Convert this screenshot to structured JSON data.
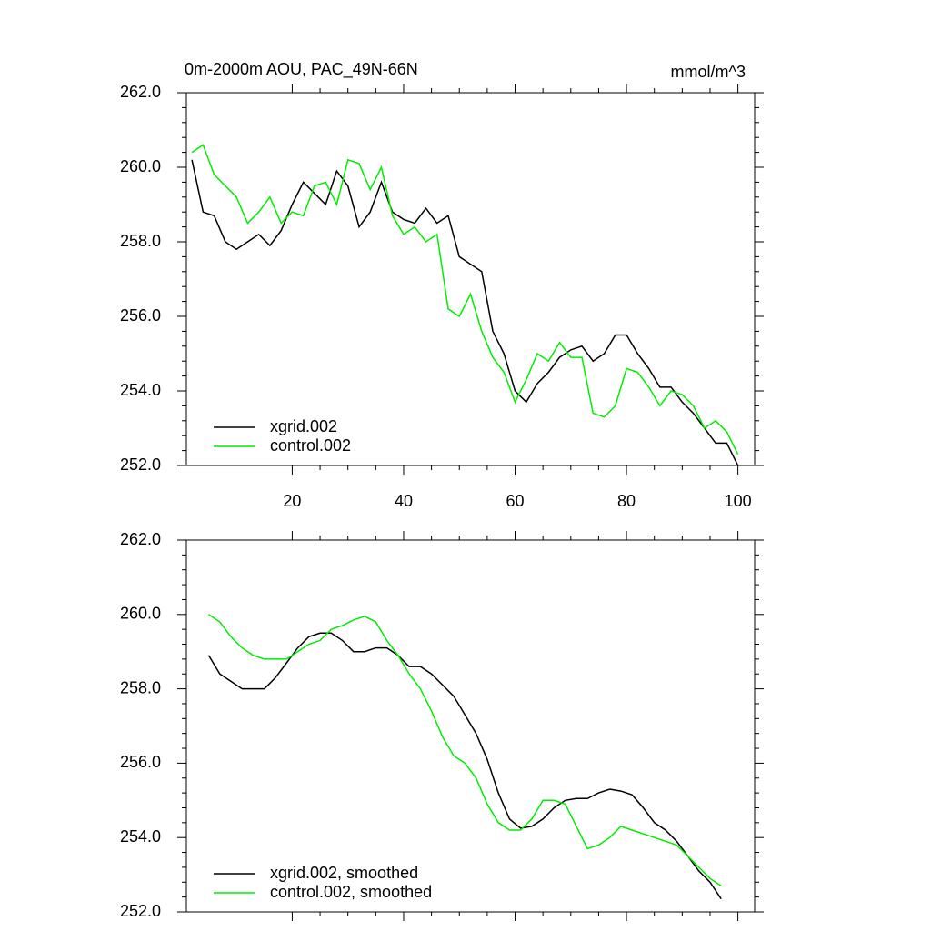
{
  "chart_data": [
    {
      "type": "line",
      "title": "0m-2000m AOU, PAC_49N-66N",
      "units": "mmol/m^3",
      "x": [
        2,
        4,
        6,
        8,
        10,
        12,
        14,
        16,
        18,
        20,
        22,
        24,
        26,
        28,
        30,
        32,
        34,
        36,
        38,
        40,
        42,
        44,
        46,
        48,
        50,
        52,
        54,
        56,
        58,
        60,
        62,
        64,
        66,
        68,
        70,
        72,
        74,
        76,
        78,
        80,
        82,
        84,
        86,
        88,
        90,
        92,
        94,
        96,
        98,
        100
      ],
      "series": [
        {
          "name": "xgrid.002",
          "color": "#000000",
          "values": [
            260.2,
            258.8,
            258.7,
            258.0,
            257.8,
            258.0,
            258.2,
            257.9,
            258.3,
            259.0,
            259.6,
            259.3,
            259.0,
            259.9,
            259.5,
            258.4,
            258.8,
            259.6,
            258.8,
            258.6,
            258.5,
            258.9,
            258.5,
            258.7,
            257.6,
            257.4,
            257.2,
            255.6,
            255.0,
            254.0,
            253.7,
            254.2,
            254.5,
            254.9,
            255.1,
            255.2,
            254.8,
            255.0,
            255.5,
            255.5,
            255.0,
            254.6,
            254.1,
            254.1,
            253.7,
            253.4,
            253.0,
            252.6,
            252.6,
            252.0
          ]
        },
        {
          "name": "control.002",
          "color": "#00ee00",
          "values": [
            260.4,
            260.6,
            259.8,
            259.5,
            259.2,
            258.5,
            258.8,
            259.2,
            258.5,
            258.8,
            258.7,
            259.5,
            259.6,
            259.0,
            260.2,
            260.1,
            259.4,
            260.0,
            258.7,
            258.2,
            258.4,
            258.0,
            258.2,
            256.2,
            256.0,
            256.6,
            255.6,
            254.9,
            254.5,
            253.7,
            254.3,
            255.0,
            254.8,
            255.3,
            254.9,
            254.9,
            253.4,
            253.3,
            253.6,
            254.6,
            254.5,
            254.1,
            253.6,
            254.0,
            253.9,
            253.6,
            253.0,
            253.2,
            252.9,
            252.3
          ]
        }
      ],
      "xlim": [
        1,
        103
      ],
      "xticks": [
        20,
        40,
        60,
        80,
        100
      ],
      "ylim": [
        252,
        262
      ],
      "yticks": [
        {
          "value": 252,
          "label": "252.0"
        },
        {
          "value": 254,
          "label": "254.0"
        },
        {
          "value": 256,
          "label": "256.0"
        },
        {
          "value": 258,
          "label": "258.0"
        },
        {
          "value": 260,
          "label": "260.0"
        },
        {
          "value": 262,
          "label": "262.0"
        }
      ],
      "legend": "lower left"
    },
    {
      "type": "line",
      "x": [
        5,
        7,
        9,
        11,
        13,
        15,
        17,
        19,
        21,
        23,
        25,
        27,
        29,
        31,
        33,
        35,
        37,
        39,
        41,
        43,
        45,
        47,
        49,
        51,
        53,
        55,
        57,
        59,
        61,
        63,
        65,
        67,
        69,
        71,
        73,
        75,
        77,
        79,
        81,
        83,
        85,
        87,
        89,
        91,
        93,
        95,
        97
      ],
      "series": [
        {
          "name": "xgrid.002, smoothed",
          "color": "#000000",
          "values": [
            258.9,
            258.4,
            258.2,
            258.0,
            258.0,
            258.0,
            258.3,
            258.7,
            259.1,
            259.4,
            259.5,
            259.5,
            259.3,
            259.0,
            259.0,
            259.1,
            259.1,
            258.9,
            258.6,
            258.6,
            258.4,
            258.1,
            257.8,
            257.3,
            256.8,
            256.1,
            255.2,
            254.5,
            254.25,
            254.3,
            254.5,
            254.8,
            255.0,
            255.05,
            255.05,
            255.2,
            255.3,
            255.25,
            255.15,
            254.8,
            254.4,
            254.2,
            253.9,
            253.5,
            253.1,
            252.8,
            252.35
          ]
        },
        {
          "name": "control.002, smoothed",
          "color": "#00ee00",
          "values": [
            260.0,
            259.8,
            259.4,
            259.1,
            258.9,
            258.8,
            258.8,
            258.8,
            259.0,
            259.2,
            259.3,
            259.6,
            259.7,
            259.85,
            259.95,
            259.8,
            259.3,
            258.9,
            258.4,
            258.0,
            257.4,
            256.7,
            256.2,
            256.0,
            255.6,
            254.9,
            254.4,
            254.2,
            254.2,
            254.5,
            255.0,
            255.0,
            254.9,
            254.3,
            253.7,
            253.8,
            254.0,
            254.3,
            254.2,
            254.1,
            254.0,
            253.9,
            253.8,
            253.5,
            253.2,
            252.9,
            252.7
          ]
        }
      ],
      "xlim": [
        1,
        103
      ],
      "xticks": [
        20,
        40,
        60,
        80,
        100
      ],
      "ylim": [
        252,
        262
      ],
      "yticks": [
        {
          "value": 252,
          "label": "252.0"
        },
        {
          "value": 254,
          "label": "254.0"
        },
        {
          "value": 256,
          "label": "256.0"
        },
        {
          "value": 258,
          "label": "258.0"
        },
        {
          "value": 260,
          "label": "260.0"
        },
        {
          "value": 262,
          "label": "262.0"
        }
      ],
      "legend": "lower left"
    }
  ]
}
